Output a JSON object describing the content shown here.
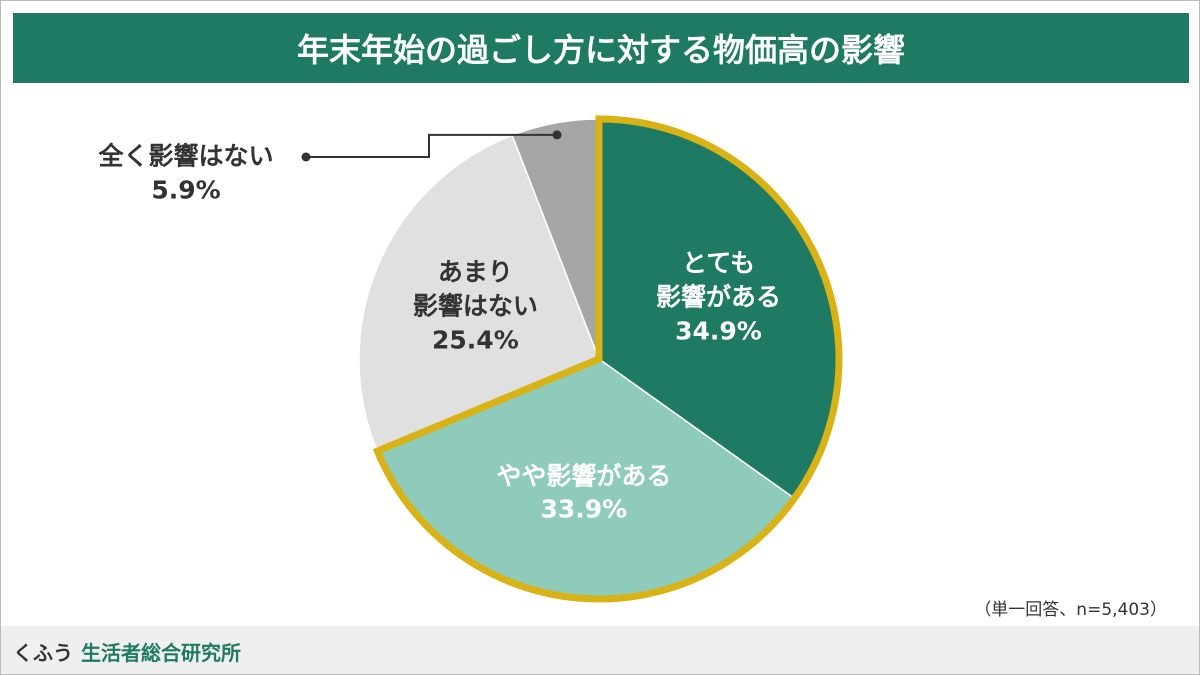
{
  "chart_data": {
    "type": "pie",
    "title": "年末年始の過ごし方に対する物価高の影響",
    "categories": [
      "とても\n影響がある",
      "やや影響がある",
      "あまり\n影響はない",
      "全く影響はない"
    ],
    "values": [
      34.9,
      33.9,
      25.4,
      5.9
    ],
    "value_labels": [
      "34.9%",
      "33.9%",
      "25.4%",
      "5.9%"
    ],
    "colors": [
      "#1f7a63",
      "#8ecbbb",
      "#e0e0e0",
      "#a6a6a6"
    ],
    "highlight": [
      0,
      1
    ],
    "highlight_color": "#d9b216",
    "note": "（単一回答、n=5,403）"
  },
  "footer": {
    "brand": "くふう",
    "name": "生活者総合研究所"
  }
}
